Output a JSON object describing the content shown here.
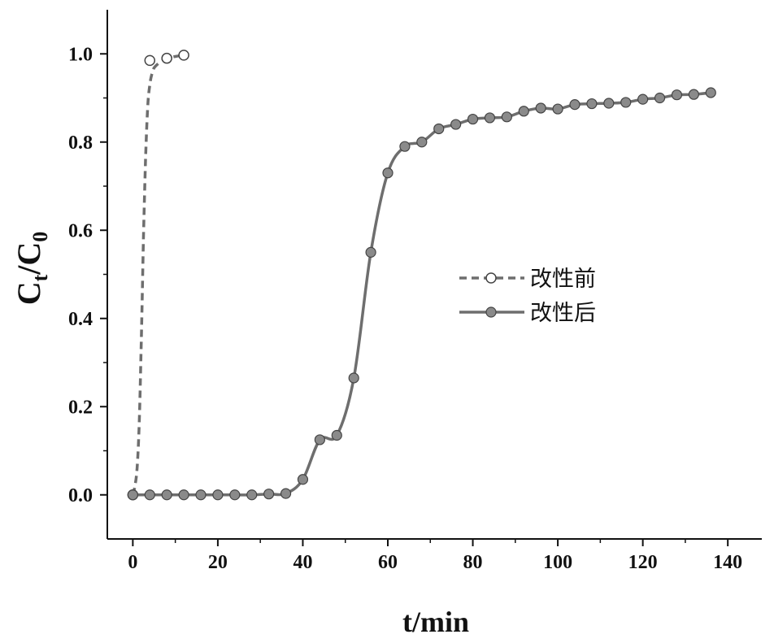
{
  "chart_data": {
    "type": "line",
    "xlabel": "t/min",
    "ylabel_main": "C",
    "ylabel_sub1": "t",
    "ylabel_mid": "/C",
    "ylabel_sub2": "0",
    "xlim": [
      -6,
      148
    ],
    "ylim": [
      -0.1,
      1.1
    ],
    "xticks": [
      0,
      20,
      40,
      60,
      80,
      100,
      120,
      140
    ],
    "yticks": [
      0.0,
      0.2,
      0.4,
      0.6,
      0.8,
      1.0
    ],
    "xtick_labels": [
      "0",
      "20",
      "40",
      "60",
      "80",
      "100",
      "120",
      "140"
    ],
    "ytick_labels": [
      "0.0",
      "0.2",
      "0.4",
      "0.6",
      "0.8",
      "1.0"
    ],
    "legend_position": "center-right",
    "series": [
      {
        "name": "改性前",
        "style": "dashed",
        "marker": "open-circle",
        "color": "#6e6e6e",
        "x": [
          0,
          4,
          8,
          12
        ],
        "y": [
          0.0,
          0.985,
          0.99,
          0.997
        ],
        "curve_x": [
          0,
          0.5,
          1,
          1.5,
          2,
          2.5,
          3,
          3.5,
          4,
          4.5,
          5,
          6,
          7,
          8,
          10,
          12
        ],
        "curve_y": [
          0.0,
          0.02,
          0.06,
          0.16,
          0.35,
          0.58,
          0.76,
          0.88,
          0.93,
          0.955,
          0.968,
          0.978,
          0.985,
          0.99,
          0.994,
          0.997
        ]
      },
      {
        "name": "改性后",
        "style": "solid",
        "marker": "filled-circle",
        "color": "#6e6e6e",
        "x": [
          0,
          4,
          8,
          12,
          16,
          20,
          24,
          28,
          32,
          36,
          40,
          44,
          48,
          52,
          56,
          60,
          64,
          68,
          72,
          76,
          80,
          84,
          88,
          92,
          96,
          100,
          104,
          108,
          112,
          116,
          120,
          124,
          128,
          132,
          136
        ],
        "y": [
          0.0,
          0.0,
          0.0,
          0.0,
          0.0,
          0.0,
          0.0,
          0.0,
          0.002,
          0.003,
          0.035,
          0.125,
          0.135,
          0.265,
          0.55,
          0.73,
          0.79,
          0.8,
          0.83,
          0.84,
          0.852,
          0.855,
          0.857,
          0.87,
          0.877,
          0.875,
          0.885,
          0.887,
          0.888,
          0.89,
          0.897,
          0.9,
          0.907,
          0.908,
          0.912
        ]
      }
    ]
  }
}
